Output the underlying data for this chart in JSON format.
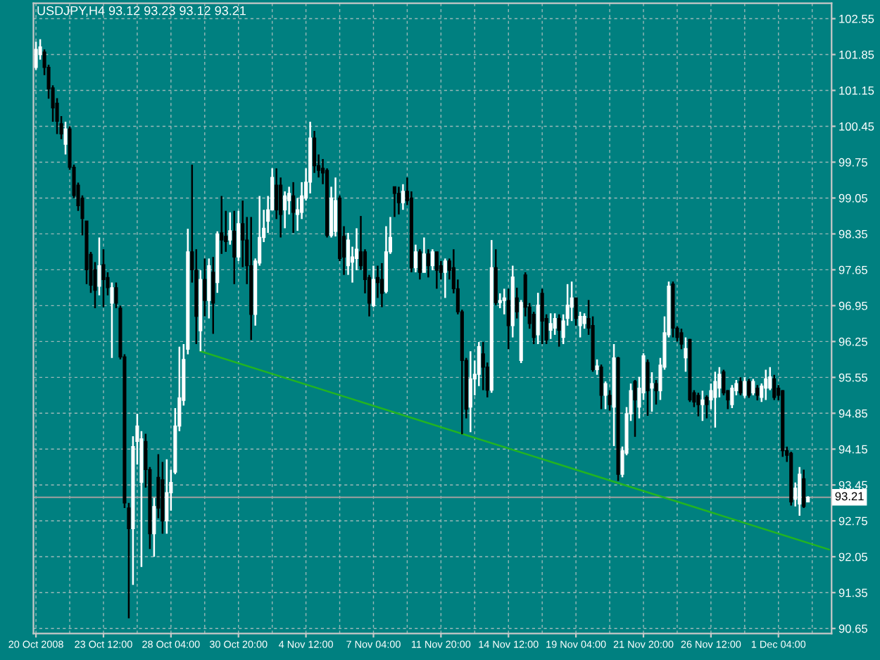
{
  "chart_data": {
    "type": "candlestick",
    "title": "USDJPY,H4 93.12 93.23 93.12 93.21",
    "categories": [
      "20 Oct 2008",
      null,
      null,
      null,
      null,
      null,
      null,
      null,
      null,
      null,
      null,
      null,
      null,
      null,
      null,
      null,
      "23 Oct 12:00",
      null,
      null,
      null,
      null,
      null,
      null,
      null,
      null,
      null,
      null,
      null,
      null,
      null,
      null,
      null,
      "28 Oct 04:00",
      null,
      null,
      null,
      null,
      null,
      null,
      null,
      null,
      null,
      null,
      null,
      null,
      null,
      null,
      null,
      "30 Oct 20:00",
      null,
      null,
      null,
      null,
      null,
      null,
      null,
      null,
      null,
      null,
      null,
      null,
      null,
      null,
      null,
      "4 Nov 12:00",
      null,
      null,
      null,
      null,
      null,
      null,
      null,
      null,
      null,
      null,
      null,
      null,
      null,
      null,
      null,
      "7 Nov 04:00",
      null,
      null,
      null,
      null,
      null,
      null,
      null,
      null,
      null,
      null,
      null,
      null,
      null,
      null,
      null,
      "11 Nov 20:00",
      null,
      null,
      null,
      null,
      null,
      null,
      null,
      null,
      null,
      null,
      null,
      null,
      null,
      null,
      null,
      "14 Nov 12:00",
      null,
      null,
      null,
      null,
      null,
      null,
      null,
      null,
      null,
      null,
      null,
      null,
      null,
      null,
      null,
      "19 Nov 04:00",
      null,
      null,
      null,
      null,
      null,
      null,
      null,
      null,
      null,
      null,
      null,
      null,
      null,
      null,
      null,
      "21 Nov 20:00",
      null,
      null,
      null,
      null,
      null,
      null,
      null,
      null,
      null,
      null,
      null,
      null,
      null,
      null,
      null,
      "26 Nov 12:00",
      null,
      null,
      null,
      null,
      null,
      null,
      null,
      null,
      null,
      null,
      null,
      null,
      null,
      null,
      null,
      "1 Dec 04:00",
      null,
      null,
      null,
      null,
      null,
      null,
      null,
      null,
      null,
      null,
      null,
      null
    ],
    "ohlc": [
      [
        101.6,
        102.1,
        101.55,
        101.95
      ],
      [
        101.85,
        102.15,
        101.75,
        102.0
      ],
      [
        101.9,
        101.95,
        101.45,
        101.6
      ],
      [
        101.6,
        101.65,
        100.99,
        101.18
      ],
      [
        101.2,
        101.25,
        100.54,
        100.81
      ],
      [
        100.9,
        101.0,
        100.3,
        100.55
      ],
      [
        100.5,
        100.65,
        100.2,
        100.3
      ],
      [
        100.1,
        100.54,
        99.9,
        100.4
      ],
      [
        100.4,
        100.45,
        99.6,
        99.65
      ],
      [
        99.65,
        99.7,
        99.05,
        99.1
      ],
      [
        99.3,
        99.35,
        98.8,
        98.9
      ],
      [
        99.05,
        99.1,
        98.32,
        98.65
      ],
      [
        98.6,
        98.6,
        97.37,
        97.65
      ],
      [
        97.95,
        98.0,
        97.2,
        97.35
      ],
      [
        97.65,
        97.8,
        96.9,
        97.25
      ],
      [
        97.33,
        98.28,
        97.15,
        97.73
      ],
      [
        97.75,
        98.05,
        96.92,
        97.46
      ],
      [
        97.5,
        97.6,
        97.15,
        97.3
      ],
      [
        97.0,
        97.4,
        95.93,
        97.3
      ],
      [
        97.3,
        97.4,
        96.9,
        97.0
      ],
      [
        96.9,
        96.95,
        95.9,
        95.95
      ],
      [
        95.95,
        96.0,
        93.0,
        93.1
      ],
      [
        93.0,
        93.1,
        90.85,
        92.6
      ],
      [
        92.6,
        94.4,
        91.5,
        94.2
      ],
      [
        94.3,
        94.84,
        93.85,
        94.6
      ],
      [
        93.5,
        94.5,
        91.85,
        94.35
      ],
      [
        94.3,
        94.45,
        93.4,
        93.75
      ],
      [
        93.75,
        93.8,
        92.2,
        92.5
      ],
      [
        92.5,
        93.2,
        92.05,
        93.03
      ],
      [
        93.6,
        94.05,
        92.8,
        93.0
      ],
      [
        93.55,
        93.9,
        92.5,
        92.75
      ],
      [
        92.75,
        93.95,
        92.5,
        93.3
      ],
      [
        93.3,
        93.75,
        92.95,
        93.5
      ],
      [
        93.7,
        94.95,
        93.66,
        94.6
      ],
      [
        94.6,
        96.15,
        94.5,
        95.15
      ],
      [
        95.1,
        96.2,
        95.0,
        95.9
      ],
      [
        96.1,
        98.45,
        96.0,
        98.0
      ],
      [
        98.0,
        99.7,
        97.4,
        97.65
      ],
      [
        97.64,
        98.05,
        96.2,
        96.74
      ],
      [
        96.46,
        97.64,
        96.06,
        97.46
      ],
      [
        97.46,
        97.87,
        96.74,
        97.05
      ],
      [
        97.05,
        97.87,
        96.7,
        97.73
      ],
      [
        97.6,
        97.9,
        96.4,
        97.0
      ],
      [
        97.4,
        98.4,
        97.2,
        98.35
      ],
      [
        98.37,
        99.09,
        97.96,
        98.23
      ],
      [
        98.3,
        98.8,
        98.0,
        98.2
      ],
      [
        98.23,
        98.77,
        98.14,
        98.41
      ],
      [
        98.4,
        98.8,
        97.37,
        97.9
      ],
      [
        97.9,
        98.8,
        97.82,
        98.55
      ],
      [
        98.55,
        99.0,
        97.7,
        98.23
      ],
      [
        98.23,
        98.68,
        97.37,
        97.73
      ],
      [
        97.73,
        98.68,
        96.28,
        96.78
      ],
      [
        96.78,
        97.87,
        96.56,
        97.82
      ],
      [
        97.78,
        99.09,
        97.73,
        98.28
      ],
      [
        98.28,
        98.82,
        98.19,
        98.46
      ],
      [
        98.6,
        99.09,
        98.37,
        98.82
      ],
      [
        98.82,
        99.63,
        98.82,
        99.45
      ],
      [
        99.3,
        99.63,
        98.64,
        98.82
      ],
      [
        99.3,
        99.45,
        98.28,
        98.73
      ],
      [
        98.82,
        99.18,
        98.46,
        99.09
      ],
      [
        99.0,
        99.27,
        98.73,
        99.14
      ],
      [
        99.09,
        99.36,
        98.37,
        98.77
      ],
      [
        98.73,
        99.05,
        98.41,
        98.82
      ],
      [
        98.77,
        99.36,
        98.64,
        99.09
      ],
      [
        99.05,
        99.63,
        99.0,
        99.36
      ],
      [
        99.36,
        100.54,
        99.14,
        100.22
      ],
      [
        100.22,
        100.36,
        99.54,
        99.68
      ],
      [
        99.68,
        99.9,
        99.45,
        99.59
      ],
      [
        99.63,
        99.81,
        99.32,
        99.54
      ],
      [
        99.59,
        99.63,
        98.28,
        98.32
      ],
      [
        98.32,
        99.27,
        98.28,
        99.05
      ],
      [
        98.4,
        99.45,
        98.3,
        99.0
      ],
      [
        99.05,
        99.1,
        97.82,
        97.87
      ],
      [
        98.3,
        98.5,
        97.55,
        97.9
      ],
      [
        97.73,
        98.37,
        97.55,
        98.23
      ],
      [
        97.8,
        98.1,
        97.4,
        97.9
      ],
      [
        97.87,
        98.46,
        97.64,
        98.05
      ],
      [
        98.0,
        98.7,
        97.65,
        97.73
      ],
      [
        98.0,
        98.05,
        97.19,
        97.46
      ],
      [
        97.5,
        97.55,
        96.74,
        97.0
      ],
      [
        96.95,
        97.73,
        96.92,
        97.46
      ],
      [
        97.5,
        97.73,
        97.1,
        97.4
      ],
      [
        97.46,
        97.78,
        96.92,
        97.19
      ],
      [
        97.23,
        98.5,
        97.19,
        98.0
      ],
      [
        98.0,
        98.68,
        97.96,
        98.28
      ],
      [
        99.27,
        99.27,
        98.68,
        99.14
      ],
      [
        99.14,
        99.27,
        98.73,
        98.96
      ],
      [
        98.96,
        99.32,
        98.82,
        99.18
      ],
      [
        99.18,
        99.45,
        98.91,
        99.0
      ],
      [
        99.05,
        99.18,
        97.6,
        97.69
      ],
      [
        97.69,
        98.14,
        97.6,
        98.0
      ],
      [
        98.0,
        98.05,
        97.46,
        97.6
      ],
      [
        97.6,
        98.28,
        97.6,
        97.96
      ],
      [
        97.96,
        98.05,
        97.5,
        97.73
      ],
      [
        97.73,
        98.05,
        97.64,
        98.0
      ],
      [
        98.0,
        98.0,
        97.28,
        97.64
      ],
      [
        97.73,
        97.82,
        97.46,
        97.6
      ],
      [
        97.6,
        97.87,
        97.1,
        97.82
      ],
      [
        97.82,
        97.87,
        97.46,
        97.64
      ],
      [
        97.69,
        98.05,
        97.19,
        97.28
      ],
      [
        97.28,
        97.46,
        96.78,
        96.83
      ],
      [
        96.83,
        96.87,
        94.44,
        95.88
      ],
      [
        95.88,
        95.93,
        94.75,
        94.93
      ],
      [
        94.97,
        96.06,
        94.48,
        95.52
      ],
      [
        95.52,
        95.88,
        95.2,
        95.61
      ],
      [
        95.61,
        96.24,
        95.38,
        96.15
      ],
      [
        96.01,
        96.24,
        95.3,
        95.75
      ],
      [
        95.75,
        95.84,
        95.16,
        95.3
      ],
      [
        95.3,
        98.23,
        95.25,
        97.69
      ],
      [
        97.69,
        98.05,
        96.96,
        97.01
      ],
      [
        97.01,
        97.19,
        96.9,
        97.05
      ],
      [
        97.05,
        97.28,
        96.78,
        97.1
      ],
      [
        97.05,
        97.28,
        96.1,
        96.56
      ],
      [
        96.56,
        97.73,
        96.33,
        97.51
      ],
      [
        97.1,
        97.3,
        96.7,
        96.83
      ],
      [
        95.88,
        97.06,
        95.83,
        97.01
      ],
      [
        97.55,
        97.6,
        96.74,
        96.92
      ],
      [
        96.92,
        97.0,
        96.5,
        96.6
      ],
      [
        96.78,
        96.83,
        96.2,
        96.33
      ],
      [
        96.38,
        97.2,
        96.2,
        96.96
      ],
      [
        97.19,
        97.28,
        96.2,
        96.65
      ],
      [
        96.7,
        96.78,
        96.2,
        96.28
      ],
      [
        96.47,
        96.8,
        96.3,
        96.6
      ],
      [
        96.51,
        96.8,
        96.38,
        96.7
      ],
      [
        96.7,
        96.78,
        96.15,
        96.47
      ],
      [
        96.33,
        96.78,
        96.2,
        96.65
      ],
      [
        96.7,
        97.37,
        96.56,
        96.96
      ],
      [
        96.92,
        97.42,
        96.65,
        97.1
      ],
      [
        97.1,
        97.1,
        96.56,
        96.7
      ],
      [
        96.56,
        96.83,
        96.33,
        96.74
      ],
      [
        96.6,
        96.8,
        96.5,
        96.74
      ],
      [
        96.7,
        97.06,
        96.38,
        96.51
      ],
      [
        96.56,
        96.74,
        95.66,
        95.7
      ],
      [
        95.7,
        95.9,
        95.6,
        95.77
      ],
      [
        95.75,
        95.8,
        94.93,
        95.2
      ],
      [
        95.2,
        95.47,
        94.93,
        95.43
      ],
      [
        95.2,
        95.3,
        94.9,
        95.02
      ],
      [
        94.97,
        96.2,
        94.21,
        95.93
      ],
      [
        95.93,
        95.95,
        93.53,
        93.66
      ],
      [
        93.66,
        94.2,
        93.6,
        94.12
      ],
      [
        94.07,
        94.97,
        94.03,
        94.84
      ],
      [
        94.84,
        95.43,
        94.7,
        95.29
      ],
      [
        95.47,
        95.5,
        94.39,
        95.11
      ],
      [
        94.97,
        95.56,
        94.75,
        95.34
      ],
      [
        95.25,
        96.02,
        95.11,
        95.97
      ],
      [
        95.84,
        95.9,
        94.8,
        95.29
      ],
      [
        95.34,
        95.65,
        94.88,
        95.43
      ],
      [
        95.43,
        95.5,
        95.02,
        95.29
      ],
      [
        95.29,
        95.93,
        95.11,
        95.79
      ],
      [
        95.75,
        96.74,
        95.7,
        96.42
      ],
      [
        96.38,
        97.42,
        96.33,
        97.33
      ],
      [
        97.37,
        97.42,
        96.33,
        96.51
      ],
      [
        96.51,
        96.55,
        96.25,
        96.33
      ],
      [
        96.42,
        96.5,
        96.1,
        96.2
      ],
      [
        95.93,
        96.33,
        95.66,
        96.11
      ],
      [
        96.29,
        96.3,
        95.07,
        95.11
      ],
      [
        95.25,
        95.3,
        94.97,
        95.07
      ],
      [
        95.2,
        95.25,
        94.79,
        95.02
      ],
      [
        95.02,
        95.29,
        94.7,
        95.11
      ],
      [
        95.16,
        95.2,
        94.75,
        95.02
      ],
      [
        95.11,
        95.43,
        94.93,
        95.29
      ],
      [
        95.16,
        95.66,
        94.57,
        95.47
      ],
      [
        95.34,
        95.75,
        95.16,
        95.61
      ],
      [
        95.66,
        95.7,
        95.2,
        95.25
      ],
      [
        95.29,
        95.3,
        94.93,
        95.11
      ],
      [
        95.02,
        95.4,
        94.95,
        95.34
      ],
      [
        95.29,
        95.5,
        95.2,
        95.43
      ],
      [
        95.47,
        95.55,
        95.2,
        95.25
      ],
      [
        95.2,
        95.55,
        95.15,
        95.47
      ],
      [
        95.47,
        95.52,
        95.15,
        95.2
      ],
      [
        95.25,
        95.52,
        95.2,
        95.47
      ],
      [
        95.34,
        95.4,
        95.1,
        95.2
      ],
      [
        95.16,
        95.43,
        95.07,
        95.38
      ],
      [
        95.34,
        95.7,
        95.11,
        95.52
      ],
      [
        95.34,
        95.75,
        95.3,
        95.56
      ],
      [
        95.52,
        95.6,
        95.11,
        95.16
      ],
      [
        95.34,
        95.4,
        95.1,
        95.2
      ],
      [
        95.29,
        95.3,
        94.0,
        94.12
      ],
      [
        94.12,
        94.2,
        93.9,
        94.03
      ],
      [
        94.07,
        94.1,
        93.05,
        93.12
      ],
      [
        93.17,
        93.5,
        93.03,
        93.39
      ],
      [
        93.08,
        93.8,
        92.85,
        93.66
      ],
      [
        93.57,
        93.75,
        93.0,
        93.03
      ],
      [
        93.12,
        93.23,
        93.12,
        93.21
      ],
      null,
      null,
      null,
      null,
      null
    ],
    "colors": [
      "#ffffff",
      "#ffffff",
      "#000000",
      "#000000",
      "#000000",
      "#000000",
      "#000000",
      "#ffffff",
      "#000000",
      "#000000",
      "#000000",
      "#000000",
      "#000000",
      "#000000",
      "#000000",
      "#ffffff",
      "#000000",
      "#000000",
      "#ffffff",
      "#000000",
      "#000000",
      "#000000",
      "#000000",
      "#ffffff",
      "#ffffff",
      "#ffffff",
      "#000000",
      "#000000",
      "#ffffff",
      "#000000",
      "#000000",
      "#ffffff",
      "#ffffff",
      "#ffffff",
      "#ffffff",
      "#ffffff",
      "#ffffff",
      "#000000",
      "#000000",
      "#ffffff",
      "#000000",
      "#ffffff",
      "#000000",
      "#ffffff",
      "#000000",
      "#000000",
      "#ffffff",
      "#000000",
      "#ffffff",
      "#000000",
      "#000000",
      "#000000",
      "#ffffff",
      "#ffffff",
      "#ffffff",
      "#ffffff",
      "#ffffff",
      "#000000",
      "#000000",
      "#ffffff",
      "#ffffff",
      "#000000",
      "#ffffff",
      "#ffffff",
      "#ffffff",
      "#ffffff",
      "#000000",
      "#000000",
      "#000000",
      "#000000",
      "#ffffff",
      "#ffffff",
      "#000000",
      "#000000",
      "#ffffff",
      "#ffffff",
      "#ffffff",
      "#000000",
      "#000000",
      "#000000",
      "#ffffff",
      "#000000",
      "#000000",
      "#ffffff",
      "#ffffff",
      "#000000",
      "#000000",
      "#ffffff",
      "#000000",
      "#000000",
      "#ffffff",
      "#000000",
      "#ffffff",
      "#000000",
      "#ffffff",
      "#000000",
      "#000000",
      "#ffffff",
      "#000000",
      "#000000",
      "#000000",
      "#000000",
      "#000000",
      "#ffffff",
      "#ffffff",
      "#ffffff",
      "#000000",
      "#000000",
      "#ffffff",
      "#000000",
      "#ffffff",
      "#ffffff",
      "#000000",
      "#ffffff",
      "#000000",
      "#ffffff",
      "#000000",
      "#000000",
      "#000000",
      "#ffffff",
      "#000000",
      "#000000",
      "#ffffff",
      "#ffffff",
      "#000000",
      "#ffffff",
      "#ffffff",
      "#ffffff",
      "#000000",
      "#ffffff",
      "#ffffff",
      "#000000",
      "#000000",
      "#ffffff",
      "#000000",
      "#ffffff",
      "#000000",
      "#ffffff",
      "#000000",
      "#ffffff",
      "#ffffff",
      "#ffffff",
      "#000000",
      "#ffffff",
      "#ffffff",
      "#000000",
      "#ffffff",
      "#000000",
      "#ffffff",
      "#ffffff",
      "#ffffff",
      "#000000",
      "#000000",
      "#000000",
      "#ffffff",
      "#000000",
      "#000000",
      "#000000",
      "#ffffff",
      "#000000",
      "#ffffff",
      "#ffffff",
      "#ffffff",
      "#000000",
      "#000000",
      "#ffffff",
      "#ffffff",
      "#000000",
      "#ffffff",
      "#000000",
      "#ffffff",
      "#000000",
      "#ffffff",
      "#ffffff",
      "#ffffff",
      "#000000",
      "#000000",
      "#000000",
      "#000000",
      "#000000",
      "#ffffff",
      "#ffffff",
      "#000000",
      "#ffffff",
      null,
      null,
      null,
      null,
      null
    ],
    "series": [
      {
        "type": "line",
        "color": "#22b422",
        "values": [
          null,
          null,
          null,
          null,
          null,
          null,
          null,
          null,
          null,
          null,
          null,
          null,
          null,
          null,
          null,
          null,
          null,
          null,
          null,
          null,
          null,
          null,
          null,
          null,
          null,
          null,
          null,
          null,
          null,
          null,
          null,
          null,
          null,
          null,
          null,
          null,
          null,
          null,
          null,
          96.06,
          null,
          null,
          null,
          null,
          null,
          null,
          null,
          null,
          null,
          null,
          null,
          null,
          null,
          null,
          null,
          null,
          null,
          null,
          null,
          null,
          null,
          null,
          null,
          null,
          null,
          null,
          null,
          null,
          null,
          null,
          null,
          null,
          null,
          null,
          null,
          null,
          null,
          null,
          null,
          null,
          null,
          null,
          null,
          null,
          null,
          null,
          null,
          null,
          null,
          null,
          null,
          null,
          null,
          null,
          null,
          null,
          null,
          null,
          null,
          null,
          null,
          null,
          null,
          null,
          null,
          null,
          null,
          null,
          null,
          null,
          null,
          null,
          null,
          null,
          null,
          null,
          null,
          null,
          null,
          null,
          null,
          null,
          null,
          null,
          null,
          null,
          null,
          null,
          null,
          null,
          null,
          null,
          null,
          null,
          null,
          null,
          null,
          null,
          null,
          null,
          null,
          null,
          null,
          null,
          null,
          null,
          null,
          null,
          null,
          null,
          null,
          null,
          null,
          null,
          null,
          null,
          null,
          null,
          null,
          null,
          null,
          null,
          null,
          null,
          null,
          null,
          null,
          null,
          null,
          null,
          null,
          null,
          null,
          null,
          null,
          null,
          null,
          null,
          null,
          null,
          null,
          null,
          null,
          null,
          null,
          null,
          null,
          null,
          92.19
        ]
      }
    ],
    "ref_lines": [
      {
        "axis": "y",
        "value": 93.21,
        "label": "93.21",
        "color": "#a0a0a0"
      }
    ],
    "ylim": [
      90.55,
      102.85
    ],
    "yticks": [
      102.55,
      101.85,
      101.15,
      100.45,
      99.75,
      99.05,
      98.35,
      97.65,
      96.95,
      96.25,
      95.55,
      94.85,
      94.15,
      93.45,
      92.75,
      92.05,
      91.35,
      90.65
    ],
    "grid": true
  }
}
